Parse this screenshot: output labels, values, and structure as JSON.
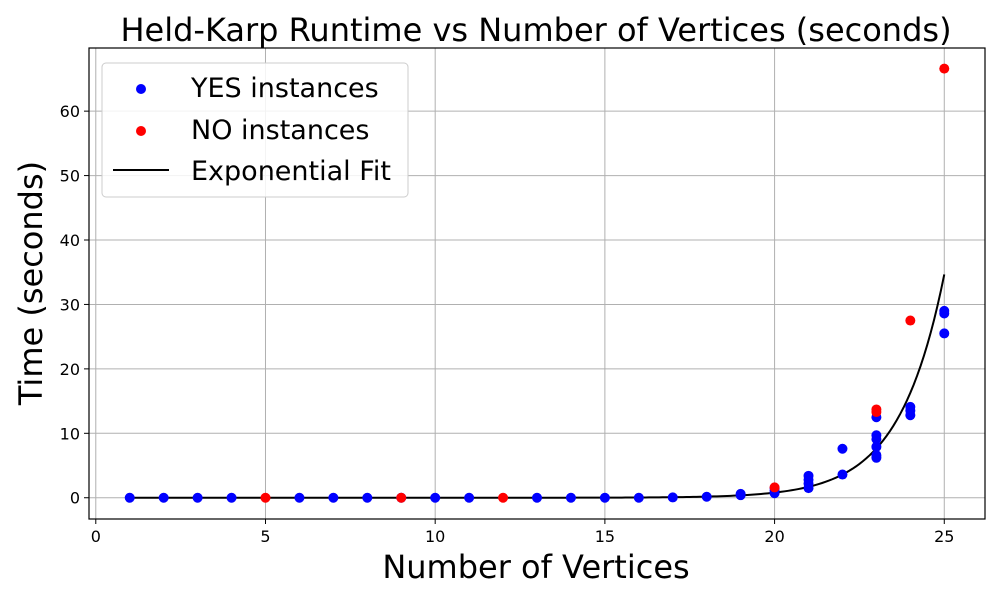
{
  "chart_data": {
    "type": "scatter",
    "title": "Held-Karp Runtime vs Number of Vertices (seconds)",
    "xlabel": "Number of Vertices",
    "ylabel": "Time (seconds)",
    "xlim": [
      -0.2,
      26.2
    ],
    "ylim": [
      -3.3,
      69.8
    ],
    "xticks": [
      0,
      5,
      10,
      15,
      20,
      25
    ],
    "yticks": [
      0,
      10,
      20,
      30,
      40,
      50,
      60
    ],
    "grid": true,
    "legend_position": "top-left",
    "series": [
      {
        "name": "YES instances",
        "kind": "scatter",
        "color": "#0000ff",
        "points": [
          [
            1,
            0
          ],
          [
            2,
            0
          ],
          [
            3,
            0
          ],
          [
            4,
            0
          ],
          [
            6,
            0
          ],
          [
            7,
            0
          ],
          [
            8,
            0
          ],
          [
            9,
            0
          ],
          [
            10,
            0
          ],
          [
            11,
            0
          ],
          [
            13,
            0
          ],
          [
            14,
            0
          ],
          [
            15,
            0
          ],
          [
            16,
            0
          ],
          [
            17,
            0.05
          ],
          [
            18,
            0.15
          ],
          [
            19,
            0.4
          ],
          [
            19,
            0.6
          ],
          [
            20,
            0.7
          ],
          [
            20,
            1.1
          ],
          [
            20,
            1.5
          ],
          [
            21,
            1.5
          ],
          [
            21,
            2.2
          ],
          [
            21,
            2.8
          ],
          [
            21,
            3.4
          ],
          [
            22,
            3.6
          ],
          [
            22,
            7.6
          ],
          [
            23,
            6.2
          ],
          [
            23,
            6.6
          ],
          [
            23,
            7.9
          ],
          [
            23,
            9.1
          ],
          [
            23,
            9.7
          ],
          [
            23,
            12.5
          ],
          [
            24,
            12.8
          ],
          [
            24,
            13.5
          ],
          [
            24,
            14.1
          ],
          [
            25,
            25.5
          ],
          [
            25,
            28.6
          ],
          [
            25,
            29.0
          ]
        ]
      },
      {
        "name": "NO instances",
        "kind": "scatter",
        "color": "#ff0000",
        "points": [
          [
            5,
            0
          ],
          [
            9,
            0
          ],
          [
            12,
            0
          ],
          [
            20,
            1.6
          ],
          [
            23,
            13.3
          ],
          [
            23,
            13.7
          ],
          [
            24,
            27.5
          ],
          [
            25,
            66.6
          ]
        ]
      },
      {
        "name": "Exponential Fit",
        "kind": "line",
        "color": "#000000",
        "model": {
          "a": 2.2e-07,
          "b": 0.755
        },
        "x_range": [
          1,
          25
        ]
      }
    ]
  }
}
